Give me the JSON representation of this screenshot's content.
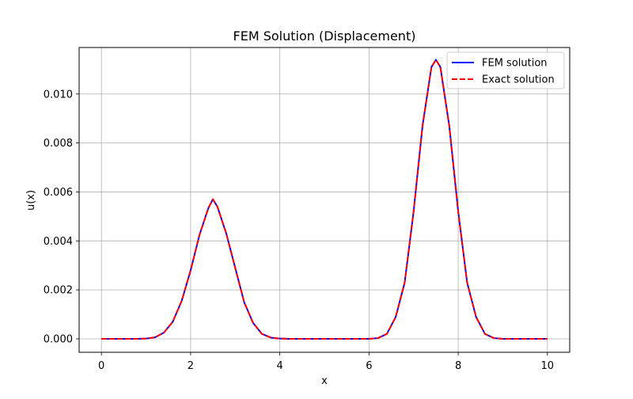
{
  "chart_data": {
    "type": "line",
    "title": "FEM Solution (Displacement)",
    "xlabel": "x",
    "ylabel": "u(x)",
    "xlim": [
      -0.5,
      10.5
    ],
    "ylim": [
      -0.00055,
      0.0119
    ],
    "xticks": [
      0,
      2,
      4,
      6,
      8,
      10
    ],
    "yticks": [
      0.0,
      0.002,
      0.004,
      0.006,
      0.008,
      0.01
    ],
    "xtick_labels": [
      "0",
      "2",
      "4",
      "6",
      "8",
      "10"
    ],
    "ytick_labels": [
      "0.000",
      "0.002",
      "0.004",
      "0.006",
      "0.008",
      "0.010"
    ],
    "grid": true,
    "legend_position": "upper right",
    "x": [
      0.0,
      0.2,
      0.4,
      0.6,
      0.8,
      1.0,
      1.2,
      1.4,
      1.6,
      1.8,
      2.0,
      2.2,
      2.4,
      2.5,
      2.6,
      2.8,
      3.0,
      3.2,
      3.4,
      3.6,
      3.8,
      4.0,
      4.2,
      4.4,
      4.6,
      4.8,
      5.0,
      5.2,
      5.4,
      5.6,
      5.8,
      6.0,
      6.2,
      6.4,
      6.6,
      6.8,
      7.0,
      7.2,
      7.4,
      7.5,
      7.6,
      7.8,
      8.0,
      8.2,
      8.4,
      8.6,
      8.8,
      9.0,
      9.2,
      9.4,
      9.6,
      9.8,
      10.0
    ],
    "series": [
      {
        "name": "FEM solution",
        "color": "#0000ff",
        "style": "solid",
        "values": [
          0.0,
          0.0,
          0.0,
          0.0,
          0.0,
          1e-05,
          6e-05,
          0.00025,
          0.0007,
          0.00155,
          0.0028,
          0.00425,
          0.00535,
          0.0057,
          0.0054,
          0.0043,
          0.0029,
          0.0015,
          0.00065,
          0.0002,
          5e-05,
          1e-05,
          0.0,
          0.0,
          0.0,
          0.0,
          0.0,
          0.0,
          0.0,
          0.0,
          0.0,
          0.0,
          3e-05,
          0.0002,
          0.0009,
          0.0023,
          0.0052,
          0.0087,
          0.0111,
          0.0114,
          0.0111,
          0.0087,
          0.0052,
          0.0023,
          0.0009,
          0.0002,
          3e-05,
          0.0,
          0.0,
          0.0,
          0.0,
          0.0,
          0.0
        ]
      },
      {
        "name": "Exact solution",
        "color": "#ff0000",
        "style": "dashed",
        "values": [
          0.0,
          0.0,
          0.0,
          0.0,
          0.0,
          1e-05,
          6e-05,
          0.00025,
          0.0007,
          0.00155,
          0.0028,
          0.00425,
          0.00535,
          0.0057,
          0.0054,
          0.0043,
          0.0029,
          0.0015,
          0.00065,
          0.0002,
          5e-05,
          1e-05,
          0.0,
          0.0,
          0.0,
          0.0,
          0.0,
          0.0,
          0.0,
          0.0,
          0.0,
          0.0,
          3e-05,
          0.0002,
          0.0009,
          0.0023,
          0.0052,
          0.0087,
          0.0111,
          0.0114,
          0.0111,
          0.0087,
          0.0052,
          0.0023,
          0.0009,
          0.0002,
          3e-05,
          0.0,
          0.0,
          0.0,
          0.0,
          0.0,
          0.0
        ]
      }
    ]
  }
}
